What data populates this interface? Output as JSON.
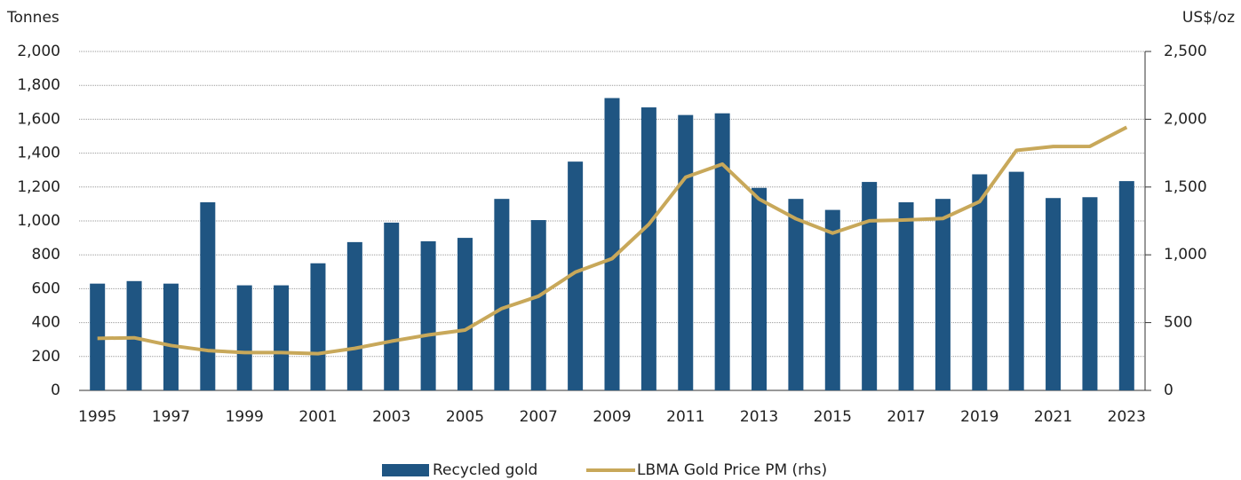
{
  "chart_data": {
    "type": "bar",
    "y_label": "Tonnes",
    "y2_label": "US$/oz",
    "categories": [
      "1995",
      null,
      "1997",
      null,
      "1999",
      null,
      "2001",
      null,
      "2003",
      null,
      "2005",
      null,
      "2007",
      null,
      "2009",
      null,
      "2011",
      null,
      "2013",
      null,
      "2015",
      null,
      "2017",
      null,
      "2019",
      null,
      "2021",
      null,
      "2023"
    ],
    "series": [
      {
        "name": "Recycled gold",
        "type": "bar",
        "color": "#1f5582",
        "values": [
          630,
          645,
          630,
          1110,
          620,
          620,
          750,
          875,
          990,
          880,
          900,
          1130,
          1005,
          1350,
          1725,
          1670,
          1625,
          1635,
          1195,
          1130,
          1065,
          1230,
          1110,
          1130,
          1275,
          1290,
          1135,
          1140,
          1235
        ]
      },
      {
        "name": "LBMA Gold Price PM (rhs)",
        "type": "line",
        "axis": "y2",
        "color": "#c8a85a",
        "values": [
          384,
          388,
          331,
          294,
          279,
          279,
          271,
          310,
          363,
          409,
          445,
          604,
          695,
          872,
          972,
          1225,
          1572,
          1669,
          1411,
          1266,
          1160,
          1251,
          1257,
          1268,
          1393,
          1770,
          1799,
          1800,
          1941
        ]
      }
    ],
    "ylim": [
      0,
      2000
    ],
    "yticks": [
      0,
      200,
      400,
      600,
      800,
      {
        "value": 1000,
        "label": "1,000"
      },
      {
        "value": 1200,
        "label": "1,200"
      },
      {
        "value": 1400,
        "label": "1,400"
      },
      {
        "value": 1600,
        "label": "1,600"
      },
      {
        "value": 1800,
        "label": "1,800"
      },
      {
        "value": 2000,
        "label": "2,000"
      }
    ],
    "y2lim": [
      0,
      2500
    ],
    "y2ticks": [
      0,
      500,
      {
        "value": 1000,
        "label": "1,000"
      },
      {
        "value": 1500,
        "label": "1,500"
      },
      {
        "value": 2000,
        "label": "2,000"
      },
      {
        "value": 2500,
        "label": "2,500"
      }
    ],
    "grid": true,
    "legend": "bottom"
  }
}
